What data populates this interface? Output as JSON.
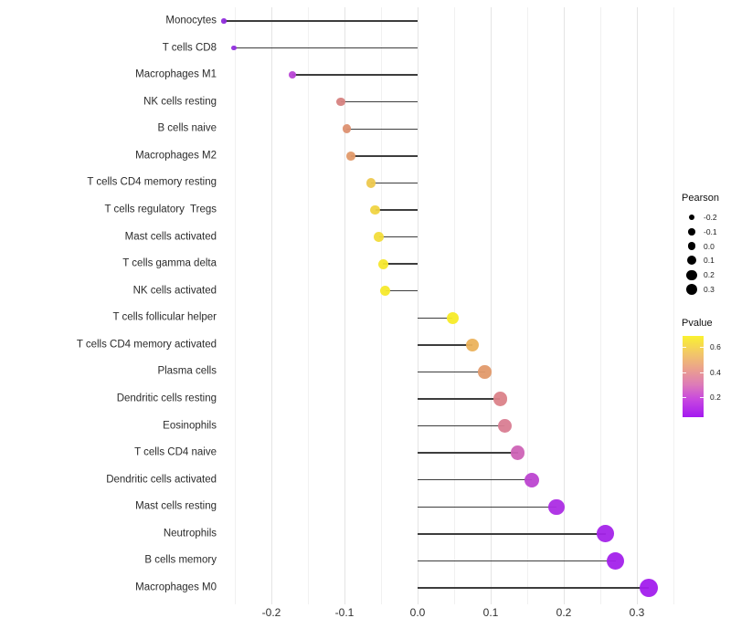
{
  "chart_data": {
    "type": "lollipop",
    "orientation": "horizontal",
    "title": "",
    "xlabel": "",
    "ylabel": "",
    "xlim": [
      -0.3,
      0.35
    ],
    "x_ticks": [
      -0.2,
      -0.1,
      0.0,
      0.1,
      0.2,
      0.3
    ],
    "grid": "vertical light-gray major/minor gridlines on white panel",
    "stem_color": "#3d3d3d",
    "points": [
      {
        "label": "Monocytes",
        "pearson": -0.265,
        "pvalue": 0.06,
        "color": "#8f2bdc"
      },
      {
        "label": "T cells CD8",
        "pearson": -0.251,
        "pvalue": 0.07,
        "color": "#9130dd"
      },
      {
        "label": "Macrophages M1",
        "pearson": -0.171,
        "pvalue": 0.13,
        "color": "#b946d6"
      },
      {
        "label": "NK cells resting",
        "pearson": -0.105,
        "pvalue": 0.33,
        "color": "#d6827f"
      },
      {
        "label": "B cells naive",
        "pearson": -0.097,
        "pvalue": 0.38,
        "color": "#dd9070"
      },
      {
        "label": "Macrophages M2",
        "pearson": -0.091,
        "pvalue": 0.4,
        "color": "#e19a6a"
      },
      {
        "label": "T cells CD4 memory resting",
        "pearson": -0.064,
        "pvalue": 0.52,
        "color": "#edc84d"
      },
      {
        "label": "T cells regulatory  Tregs",
        "pearson": -0.058,
        "pvalue": 0.55,
        "color": "#f0d442"
      },
      {
        "label": "Mast cells activated",
        "pearson": -0.053,
        "pvalue": 0.57,
        "color": "#f2dc3a"
      },
      {
        "label": "T cells gamma delta",
        "pearson": -0.047,
        "pvalue": 0.62,
        "color": "#f6e72e"
      },
      {
        "label": "NK cells activated",
        "pearson": -0.044,
        "pvalue": 0.63,
        "color": "#f6e92b"
      },
      {
        "label": "T cells follicular helper",
        "pearson": 0.048,
        "pvalue": 0.64,
        "color": "#f7eb27"
      },
      {
        "label": "T cells CD4 memory activated",
        "pearson": 0.075,
        "pvalue": 0.5,
        "color": "#ebb25b"
      },
      {
        "label": "Plasma cells",
        "pearson": 0.092,
        "pvalue": 0.41,
        "color": "#e29a6b"
      },
      {
        "label": "Dendritic cells resting",
        "pearson": 0.113,
        "pvalue": 0.32,
        "color": "#db8289"
      },
      {
        "label": "Eosinophils",
        "pearson": 0.119,
        "pvalue": 0.3,
        "color": "#d97d92"
      },
      {
        "label": "T cells CD4 naive",
        "pearson": 0.137,
        "pvalue": 0.22,
        "color": "#ce63b6"
      },
      {
        "label": "Dendritic cells activated",
        "pearson": 0.156,
        "pvalue": 0.16,
        "color": "#bc45d0"
      },
      {
        "label": "Mast cells resting",
        "pearson": 0.19,
        "pvalue": 0.11,
        "color": "#ac2ce4"
      },
      {
        "label": "Neutrophils",
        "pearson": 0.257,
        "pvalue": 0.06,
        "color": "#a424e9"
      },
      {
        "label": "B cells memory",
        "pearson": 0.271,
        "pvalue": 0.06,
        "color": "#a321eb"
      },
      {
        "label": "Macrophages M0",
        "pearson": 0.316,
        "pvalue": 0.04,
        "color": "#a21eed"
      }
    ],
    "legend": {
      "size": {
        "title": "Pearson",
        "items": [
          "-0.2",
          "-0.1",
          "0.0",
          "0.1",
          "0.2",
          "0.3"
        ],
        "dot_color": "#000000",
        "position": "right"
      },
      "color": {
        "title": "Pvalue",
        "ticks": [
          0.6,
          0.4,
          0.2
        ],
        "range": [
          0.04,
          0.69
        ],
        "gradient": [
          "#faf130 0%",
          "#f2c669 22%",
          "#ea9e90 42%",
          "#dd7bb8 60%",
          "#c848df 78%",
          "#a419f0 100%"
        ],
        "position": "right"
      }
    }
  }
}
